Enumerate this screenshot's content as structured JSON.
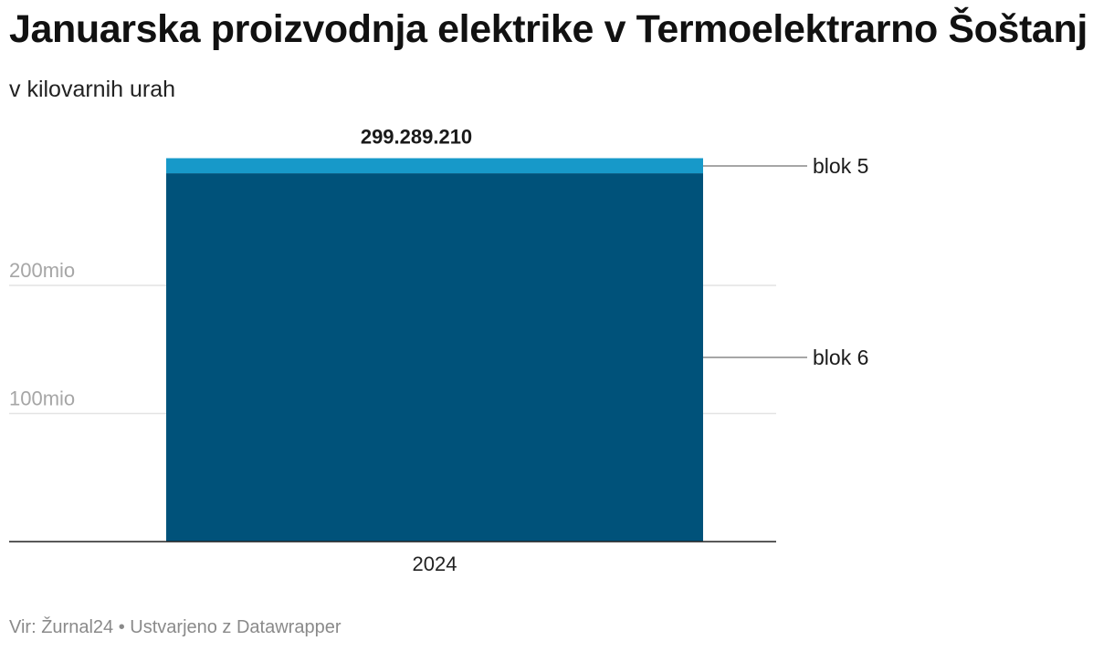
{
  "title": "Januarska proizvodnja elektrike v Termoelektrarno Šoštanj",
  "subtitle": "v kilovarnih urah",
  "chart_data": {
    "type": "bar",
    "stacked": true,
    "categories": [
      "2024"
    ],
    "series": [
      {
        "name": "blok 6",
        "values": [
          287500000
        ],
        "color": "#00527a"
      },
      {
        "name": "blok 5",
        "values": [
          11789210
        ],
        "color": "#1799c9"
      }
    ],
    "total_labels": [
      "299.289.210"
    ],
    "y_ticks": [
      {
        "value": 100000000,
        "label": "100mio"
      },
      {
        "value": 200000000,
        "label": "200mio"
      }
    ],
    "ylim": [
      0,
      300000000
    ],
    "grid": true,
    "legend": "direct labels, right"
  },
  "footer": {
    "source": "Vir: Žurnal24",
    "separator": "•",
    "credit": "Ustvarjeno z Datawrapper"
  }
}
